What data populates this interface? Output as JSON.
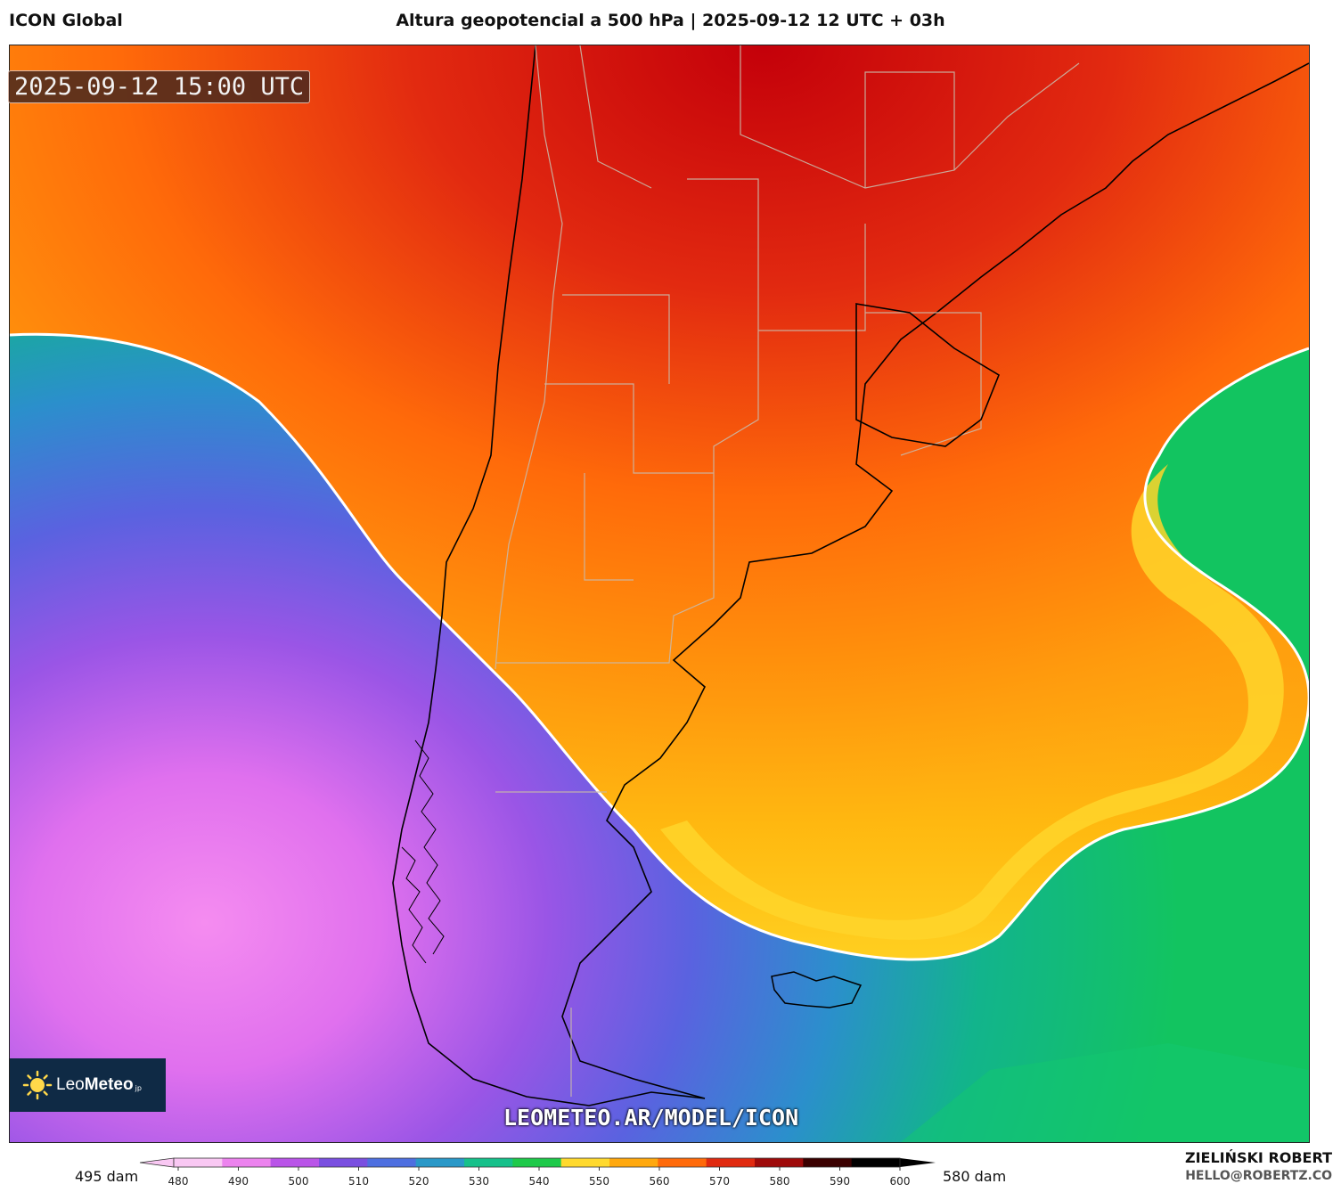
{
  "header": {
    "model": "ICON Global",
    "title": "Altura geopotencial a 500 hPa | 2025-09-12 12 UTC + 03h"
  },
  "map": {
    "valid_time": "2025-09-12 15:00 UTC",
    "watermark": "LEOMETEO.AR/MODEL/ICON",
    "logo": {
      "brand_light": "Leo",
      "brand_bold": "Meteo",
      "suffix": "jp"
    }
  },
  "colorbar": {
    "min_label": "495 dam",
    "max_label": "580 dam",
    "ticks": [
      "480",
      "490",
      "500",
      "510",
      "520",
      "530",
      "540",
      "550",
      "560",
      "570",
      "580",
      "590",
      "600"
    ],
    "colors": [
      "#f9c8f3",
      "#ec83ee",
      "#b954e8",
      "#7a4fe0",
      "#4e6fe0",
      "#2a98c8",
      "#16c08a",
      "#1ec94a",
      "#ffd92e",
      "#ffa80e",
      "#ff6a0a",
      "#e02a10",
      "#9e0a0a",
      "#3a0000",
      "#000000"
    ]
  },
  "credit": {
    "name": "ZIELIŃSKI ROBERT",
    "email": "HELLO@ROBERTZ.CO"
  }
}
